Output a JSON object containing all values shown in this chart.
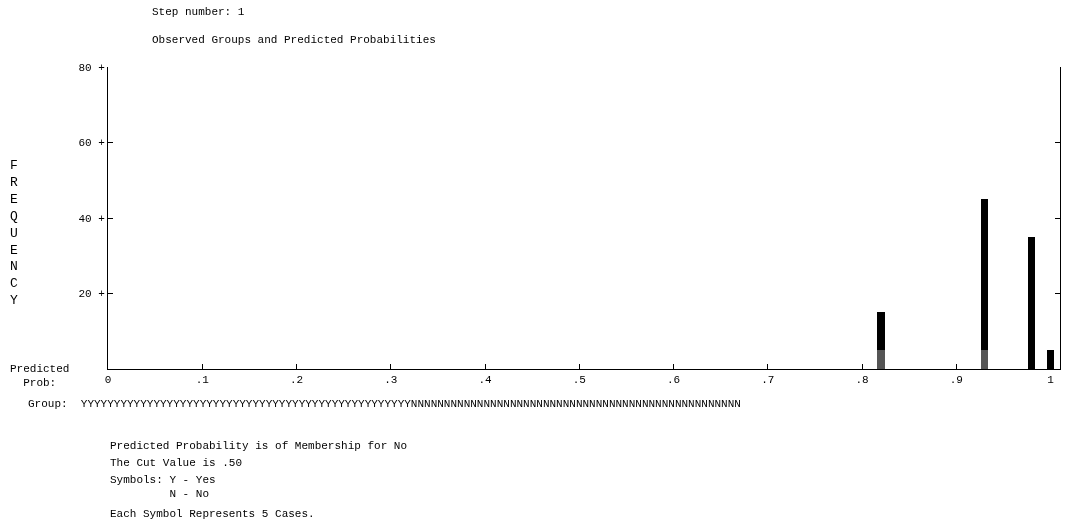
{
  "chart_data": {
    "type": "bar",
    "stacked": true,
    "title": "Step number: 1",
    "subtitle": "Observed Groups and Predicted Probabilities",
    "xlabel": "Predicted\n  Prob:",
    "ylabel": "FREQUENCY",
    "x": [
      0.82,
      0.93,
      0.98,
      1.0
    ],
    "series": [
      {
        "color": "#555555",
        "values": [
          5,
          5,
          0,
          0
        ]
      },
      {
        "color": "#000000",
        "values": [
          10,
          40,
          35,
          5
        ]
      }
    ],
    "xlim": [
      0,
      1.01
    ],
    "xticks": [
      0,
      {
        "value": 0.1,
        "label": ".1"
      },
      {
        "value": 0.2,
        "label": ".2"
      },
      {
        "value": 0.3,
        "label": ".3"
      },
      {
        "value": 0.4,
        "label": ".4"
      },
      {
        "value": 0.5,
        "label": ".5"
      },
      {
        "value": 0.6,
        "label": ".6"
      },
      {
        "value": 0.7,
        "label": ".7"
      },
      {
        "value": 0.8,
        "label": ".8"
      },
      {
        "value": 0.9,
        "label": ".9"
      },
      1
    ],
    "ylim": [
      0,
      80
    ],
    "yticks": [
      {
        "value": 20,
        "label": "20 +"
      },
      {
        "value": 40,
        "label": "40 +"
      },
      {
        "value": 60,
        "label": "60 +"
      },
      {
        "value": 80,
        "label": "80 +"
      }
    ],
    "annotations": [
      "Group:  YYYYYYYYYYYYYYYYYYYYYYYYYYYYYYYYYYYYYYYYYYYYYYYYYYNNNNNNNNNNNNNNNNNNNNNNNNNNNNNNNNNNNNNNNNNNNNNNNNNN",
      "Predicted Probability is of Membership for No",
      "The Cut Value is .50",
      "Symbols: Y - Yes\n         N - No",
      "Each Symbol Represents 5 Cases."
    ]
  }
}
